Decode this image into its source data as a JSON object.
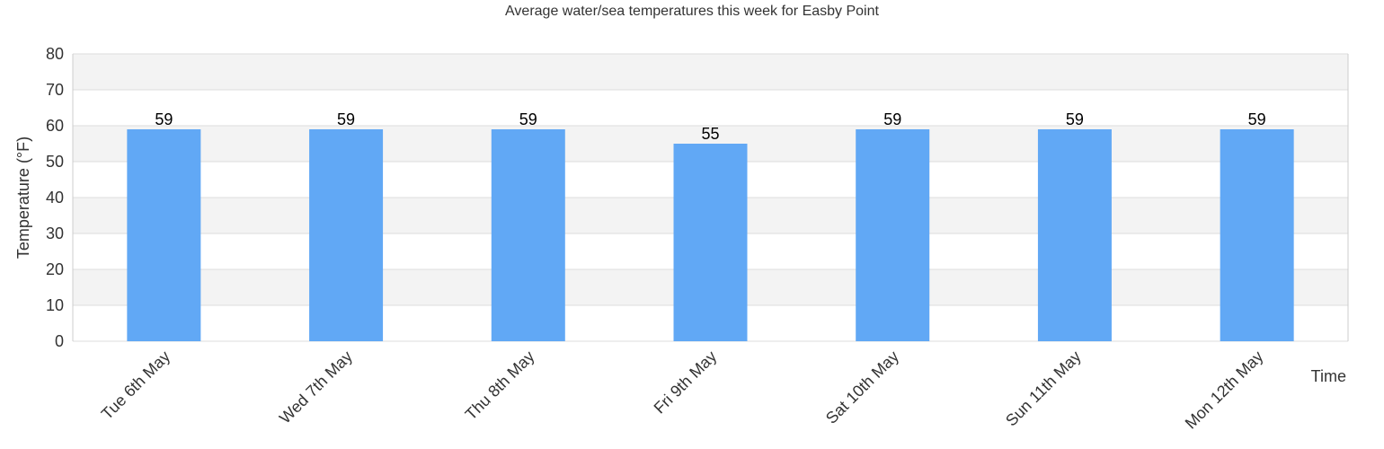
{
  "chart_data": {
    "type": "bar",
    "title": "Average water/sea temperatures this week for Easby Point",
    "xlabel": "Time",
    "ylabel": "Temperature (°F)",
    "categories": [
      "Tue 6th May",
      "Wed 7th May",
      "Thu 8th May",
      "Fri 9th May",
      "Sat 10th May",
      "Sun 11th May",
      "Mon 12th May"
    ],
    "values": [
      59,
      59,
      59,
      55,
      59,
      59,
      59
    ],
    "data_labels": [
      "59",
      "59",
      "59",
      "55",
      "59",
      "59",
      "59"
    ],
    "ylim": [
      0,
      80
    ],
    "y_ticks": [
      0,
      10,
      20,
      30,
      40,
      50,
      60,
      70,
      80
    ],
    "y_tick_labels": [
      "0",
      "10",
      "20",
      "30",
      "40",
      "50",
      "60",
      "70",
      "80"
    ],
    "grid": true,
    "legend": "none",
    "colors": {
      "bar": "#61a8f5",
      "band_alt": "#f3f3f3",
      "band": "#ffffff",
      "gridline": "#dddddd",
      "axis": "#cccccc"
    }
  }
}
